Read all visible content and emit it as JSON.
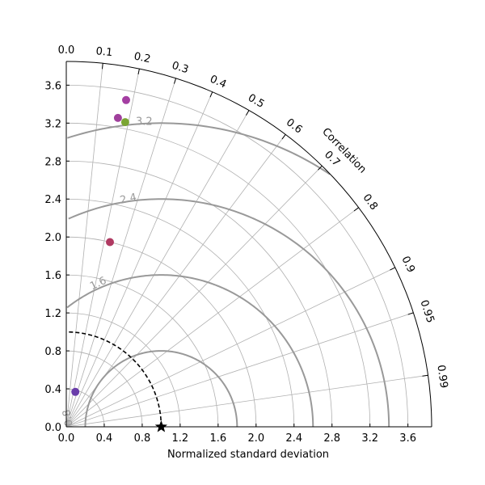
{
  "chart_data": {
    "type": "scatter",
    "subtype": "taylor-diagram",
    "title": "",
    "xlabel": "Normalized standard deviation",
    "angular_label": "Correlation",
    "std_max": 3.85,
    "std_ticks": [
      "0.0",
      "0.4",
      "0.8",
      "1.2",
      "1.6",
      "2.0",
      "2.4",
      "2.8",
      "3.2",
      "3.6"
    ],
    "std_tick_values": [
      0.0,
      0.4,
      0.8,
      1.2,
      1.6,
      2.0,
      2.4,
      2.8,
      3.2,
      3.6
    ],
    "correlation_ticks": [
      "0.0",
      "0.1",
      "0.2",
      "0.3",
      "0.4",
      "0.5",
      "0.6",
      "0.7",
      "0.8",
      "0.9",
      "0.95",
      "0.99"
    ],
    "correlation_tick_values": [
      0.0,
      0.1,
      0.2,
      0.3,
      0.4,
      0.5,
      0.6,
      0.7,
      0.8,
      0.9,
      0.95,
      0.99
    ],
    "grid": true,
    "reference": {
      "std": 1.0,
      "correlation": 1.0,
      "marker": "star",
      "color": "#000000"
    },
    "rms_contours": [
      {
        "value": 0.8,
        "label": "0.8"
      },
      {
        "value": 1.6,
        "label": "1.6"
      },
      {
        "value": 2.4,
        "label": "2.4"
      },
      {
        "value": 3.2,
        "label": "3.2"
      }
    ],
    "points": [
      {
        "std": 0.38,
        "correlation": 0.25,
        "color": "#6a3daa"
      },
      {
        "std": 2.0,
        "correlation": 0.23,
        "color": "#b03a62"
      },
      {
        "std": 3.3,
        "correlation": 0.165,
        "color": "#a0409c"
      },
      {
        "std": 3.5,
        "correlation": 0.18,
        "color": "#a43ea2"
      },
      {
        "std": 3.27,
        "correlation": 0.19,
        "color": "#7aa532"
      }
    ]
  }
}
